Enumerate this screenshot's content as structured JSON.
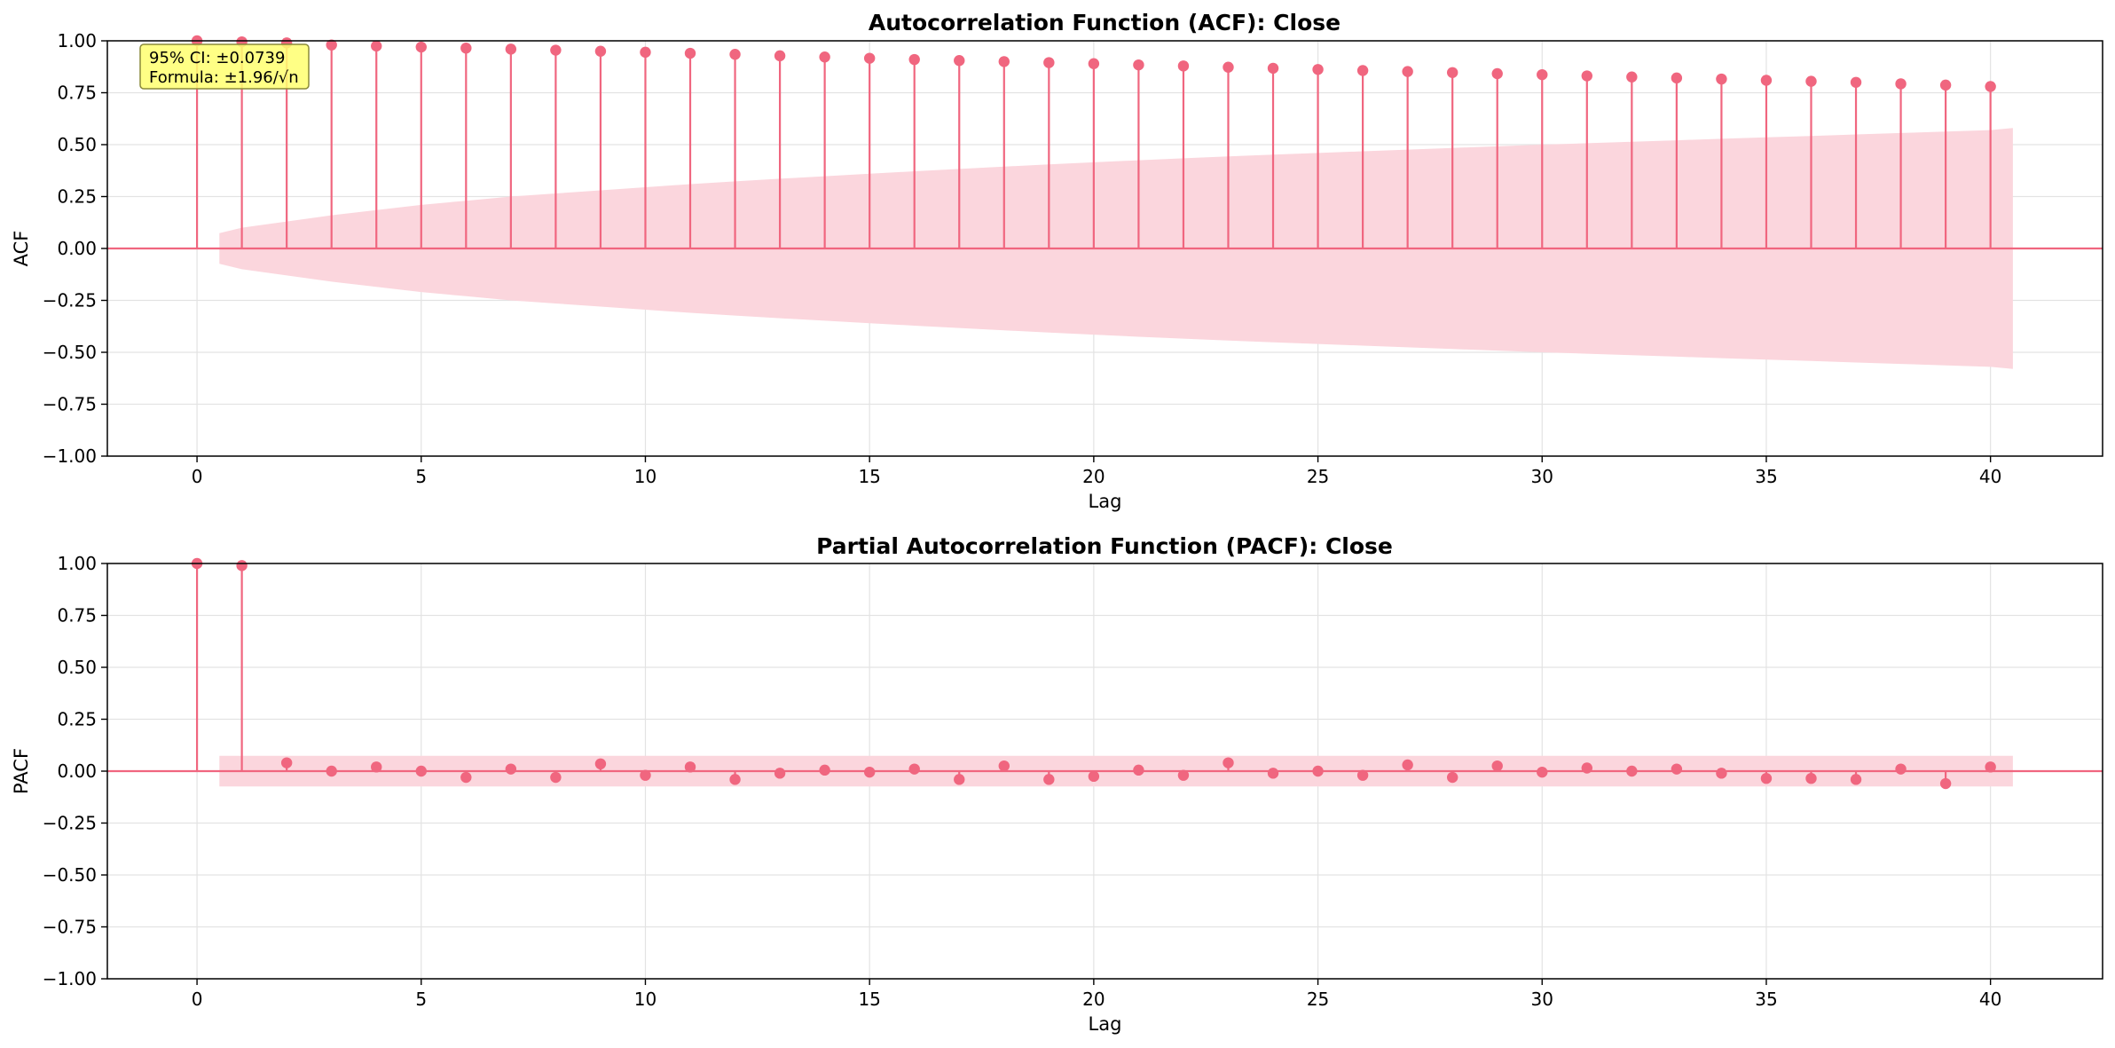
{
  "colors": {
    "stem": "#f0667f",
    "band": "#fbd6dd",
    "grid": "#e3e3e3",
    "frame": "#000000",
    "annotation_bg": "#ffff70",
    "annotation_border": "#8a8a3a"
  },
  "annotation": {
    "line1": "95% CI: ±0.0739",
    "line2": "Formula: ±1.96/√n"
  },
  "chart_data": [
    {
      "type": "stem",
      "title": "Autocorrelation Function (ACF): Close",
      "xlabel": "Lag",
      "ylabel": "ACF",
      "xlim": [
        -2,
        42.5
      ],
      "ylim": [
        -1.0,
        1.0
      ],
      "xticks": [
        0,
        5,
        10,
        15,
        20,
        25,
        30,
        35,
        40
      ],
      "xtick_labels": [
        "0",
        "5",
        "10",
        "15",
        "20",
        "25",
        "30",
        "35",
        "40"
      ],
      "yticks": [
        -1.0,
        -0.75,
        -0.5,
        -0.25,
        0.0,
        0.25,
        0.5,
        0.75,
        1.0
      ],
      "ytick_labels": [
        "−1.00",
        "−0.75",
        "−0.50",
        "−0.25",
        "0.00",
        "0.25",
        "0.50",
        "0.75",
        "1.00"
      ],
      "grid": true,
      "lags": [
        0,
        1,
        2,
        3,
        4,
        5,
        6,
        7,
        8,
        9,
        10,
        11,
        12,
        13,
        14,
        15,
        16,
        17,
        18,
        19,
        20,
        21,
        22,
        23,
        24,
        25,
        26,
        27,
        28,
        29,
        30,
        31,
        32,
        33,
        34,
        35,
        36,
        37,
        38,
        39,
        40
      ],
      "values": [
        1.0,
        0.995,
        0.99,
        0.98,
        0.975,
        0.97,
        0.965,
        0.96,
        0.955,
        0.95,
        0.945,
        0.94,
        0.935,
        0.928,
        0.922,
        0.916,
        0.91,
        0.905,
        0.9,
        0.895,
        0.89,
        0.884,
        0.879,
        0.873,
        0.868,
        0.862,
        0.857,
        0.852,
        0.847,
        0.842,
        0.837,
        0.831,
        0.826,
        0.821,
        0.816,
        0.81,
        0.805,
        0.8,
        0.793,
        0.787,
        0.78
      ],
      "confidence_band": {
        "x": [
          0.5,
          1,
          2,
          3,
          4,
          5,
          6,
          7,
          8,
          9,
          10,
          11,
          12,
          13,
          14,
          15,
          16,
          17,
          18,
          19,
          20,
          21,
          22,
          23,
          24,
          25,
          26,
          27,
          28,
          29,
          30,
          31,
          32,
          33,
          34,
          35,
          36,
          37,
          38,
          39,
          40,
          40.5
        ],
        "upper": [
          0.074,
          0.1,
          0.13,
          0.16,
          0.185,
          0.21,
          0.23,
          0.25,
          0.265,
          0.28,
          0.295,
          0.31,
          0.323,
          0.336,
          0.348,
          0.36,
          0.372,
          0.383,
          0.394,
          0.405,
          0.415,
          0.425,
          0.434,
          0.443,
          0.452,
          0.46,
          0.468,
          0.476,
          0.484,
          0.492,
          0.5,
          0.507,
          0.514,
          0.521,
          0.528,
          0.535,
          0.542,
          0.549,
          0.556,
          0.563,
          0.57,
          0.58
        ],
        "lower": [
          -0.074,
          -0.1,
          -0.13,
          -0.16,
          -0.185,
          -0.21,
          -0.23,
          -0.25,
          -0.265,
          -0.28,
          -0.295,
          -0.31,
          -0.323,
          -0.336,
          -0.348,
          -0.36,
          -0.372,
          -0.383,
          -0.394,
          -0.405,
          -0.415,
          -0.425,
          -0.434,
          -0.443,
          -0.452,
          -0.46,
          -0.468,
          -0.476,
          -0.484,
          -0.492,
          -0.5,
          -0.507,
          -0.514,
          -0.521,
          -0.528,
          -0.535,
          -0.542,
          -0.549,
          -0.556,
          -0.563,
          -0.57,
          -0.58
        ]
      }
    },
    {
      "type": "stem",
      "title": "Partial Autocorrelation Function (PACF): Close",
      "xlabel": "Lag",
      "ylabel": "PACF",
      "xlim": [
        -2,
        42.5
      ],
      "ylim": [
        -1.0,
        1.0
      ],
      "xticks": [
        0,
        5,
        10,
        15,
        20,
        25,
        30,
        35,
        40
      ],
      "xtick_labels": [
        "0",
        "5",
        "10",
        "15",
        "20",
        "25",
        "30",
        "35",
        "40"
      ],
      "yticks": [
        -1.0,
        -0.75,
        -0.5,
        -0.25,
        0.0,
        0.25,
        0.5,
        0.75,
        1.0
      ],
      "ytick_labels": [
        "−1.00",
        "−0.75",
        "−0.50",
        "−0.25",
        "0.00",
        "0.25",
        "0.50",
        "0.75",
        "1.00"
      ],
      "grid": true,
      "lags": [
        0,
        1,
        2,
        3,
        4,
        5,
        6,
        7,
        8,
        9,
        10,
        11,
        12,
        13,
        14,
        15,
        16,
        17,
        18,
        19,
        20,
        21,
        22,
        23,
        24,
        25,
        26,
        27,
        28,
        29,
        30,
        31,
        32,
        33,
        34,
        35,
        36,
        37,
        38,
        39,
        40
      ],
      "values": [
        1.0,
        0.99,
        0.04,
        0.0,
        0.02,
        0.0,
        -0.03,
        0.01,
        -0.03,
        0.035,
        -0.02,
        0.02,
        -0.04,
        -0.01,
        0.005,
        -0.005,
        0.01,
        -0.04,
        0.025,
        -0.04,
        -0.025,
        0.005,
        -0.02,
        0.04,
        -0.01,
        0.0,
        -0.02,
        0.03,
        -0.03,
        0.025,
        -0.005,
        0.015,
        0.0,
        0.01,
        -0.01,
        -0.035,
        -0.035,
        -0.04,
        0.01,
        -0.06,
        0.02
      ],
      "confidence_band": {
        "x": [
          0.5,
          40.5
        ],
        "upper": [
          0.0739,
          0.0739
        ],
        "lower": [
          -0.0739,
          -0.0739
        ]
      }
    }
  ]
}
